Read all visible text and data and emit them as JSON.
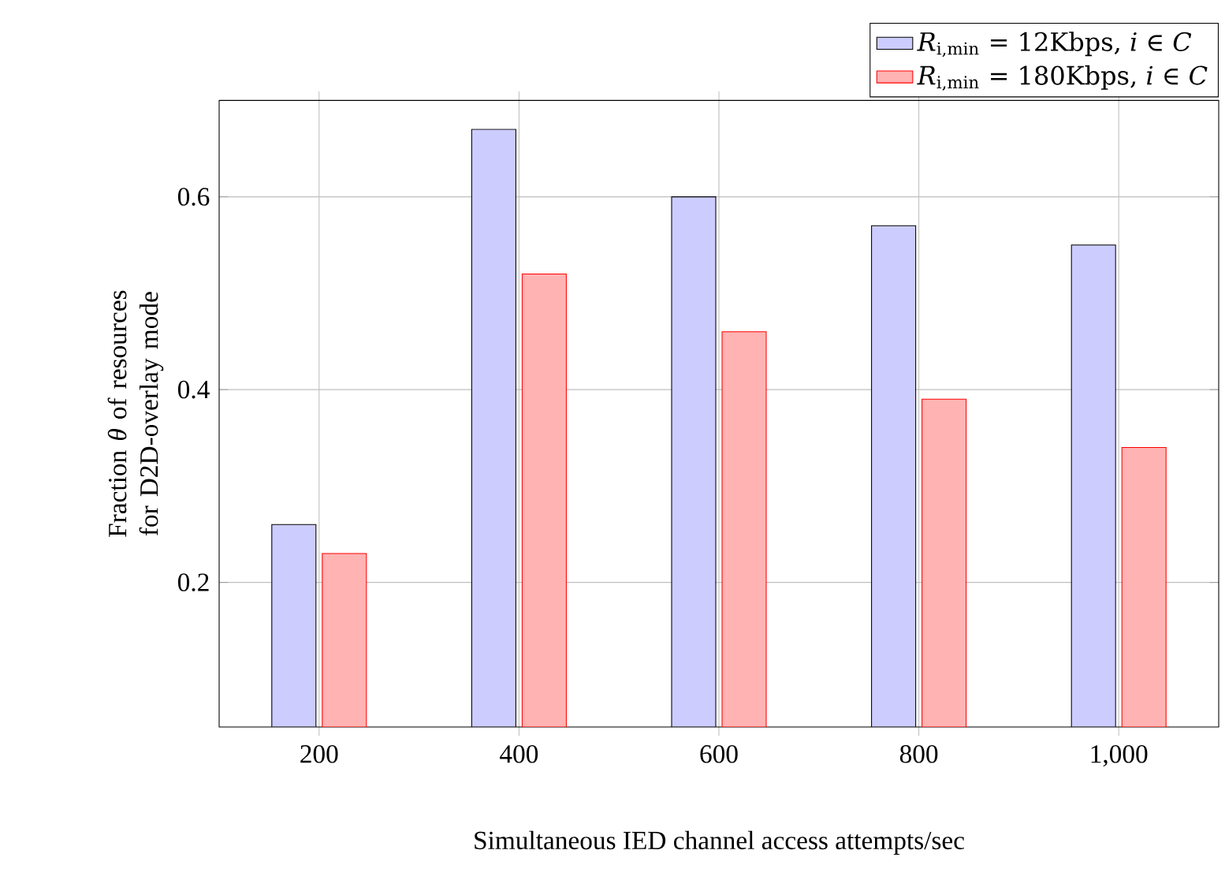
{
  "chart_data": {
    "type": "bar",
    "x": [
      200,
      400,
      600,
      800,
      1000
    ],
    "series": [
      {
        "name": "*R*$_{i,min}$ = 12Kbps,  *i* ∈ *C*",
        "color": "#ccccff",
        "values": [
          0.26,
          0.67,
          0.6,
          0.57,
          0.55
        ]
      },
      {
        "name": "*R*$_{i,min}$ = 180Kbps,  *i* ∈ *C*",
        "color": "#ffb3b3",
        "values": [
          0.23,
          0.52,
          0.46,
          0.39,
          0.34
        ]
      }
    ],
    "xlabel": "Simultaneous IED channel access attempts/sec",
    "ylabel": "Fraction *θ* of resources for D2D-overlay mode",
    "xlim": [
      100,
      1100
    ],
    "ylim": [
      0.05,
      0.7
    ],
    "xticks": [
      200,
      400,
      600,
      800,
      {
        "value": 1000,
        "label": "1,000"
      }
    ],
    "yticks": [
      0.2,
      0.4,
      0.6
    ],
    "grid": true,
    "legend": "top right"
  }
}
